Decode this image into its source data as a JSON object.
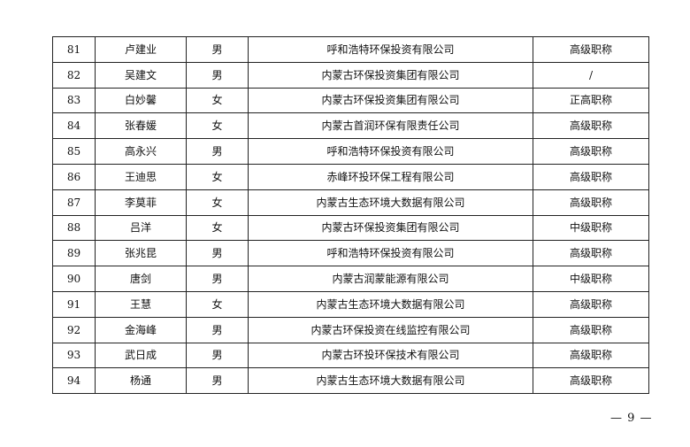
{
  "rows": [
    [
      "81",
      "卢建业",
      "男",
      "呼和浩特环保投资有限公司",
      "高级职称"
    ],
    [
      "82",
      "吴建文",
      "男",
      "内蒙古环保投资集团有限公司",
      "/"
    ],
    [
      "83",
      "白妙馨",
      "女",
      "内蒙古环保投资集团有限公司",
      "正高职称"
    ],
    [
      "84",
      "张春媛",
      "女",
      "内蒙古首润环保有限责任公司",
      "高级职称"
    ],
    [
      "85",
      "高永兴",
      "男",
      "呼和浩特环保投资有限公司",
      "高级职称"
    ],
    [
      "86",
      "王迪思",
      "女",
      "赤峰环投环保工程有限公司",
      "高级职称"
    ],
    [
      "87",
      "李莫菲",
      "女",
      "内蒙古生态环境大数据有限公司",
      "高级职称"
    ],
    [
      "88",
      "吕洋",
      "女",
      "内蒙古环保投资集团有限公司",
      "中级职称"
    ],
    [
      "89",
      "张兆昆",
      "男",
      "呼和浩特环保投资有限公司",
      "高级职称"
    ],
    [
      "90",
      "唐剑",
      "男",
      "内蒙古润蒙能源有限公司",
      "中级职称"
    ],
    [
      "91",
      "王慧",
      "女",
      "内蒙古生态环境大数据有限公司",
      "高级职称"
    ],
    [
      "92",
      "金海峰",
      "男",
      "内蒙古环保投资在线监控有限公司",
      "高级职称"
    ],
    [
      "93",
      "武日成",
      "男",
      "内蒙古环投环保技术有限公司",
      "高级职称"
    ],
    [
      "94",
      "杨通",
      "男",
      "内蒙古生态环境大数据有限公司",
      "高级职称"
    ]
  ],
  "page_number": "— 9 —"
}
